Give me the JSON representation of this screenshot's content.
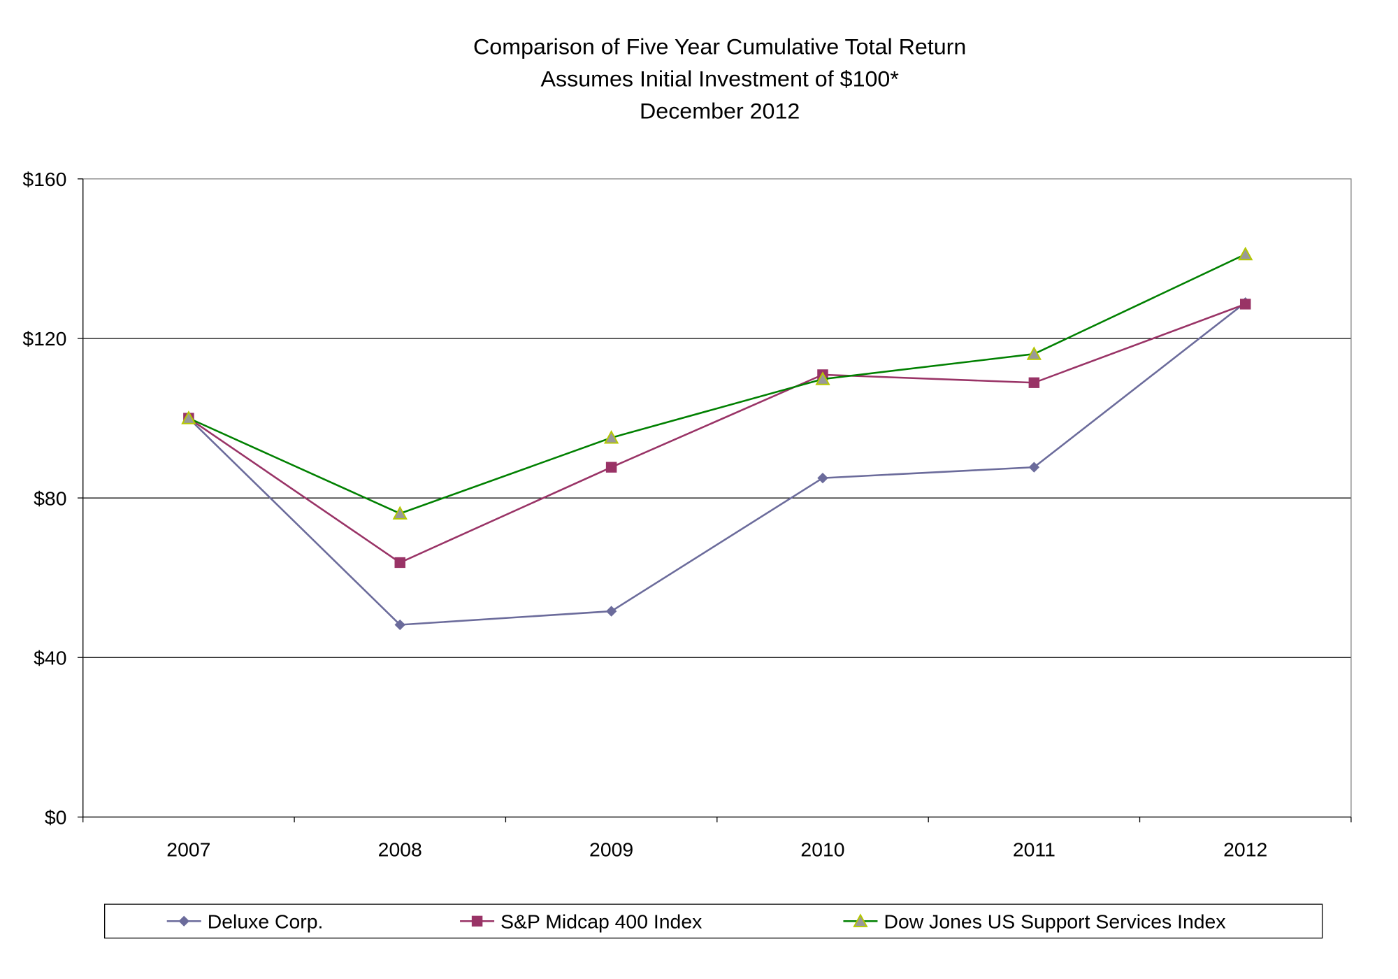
{
  "chart_data": {
    "type": "line",
    "title": [
      "Comparison of Five Year Cumulative Total Return",
      "Assumes Initial Investment of $100*",
      "December 2012"
    ],
    "xlabel": "",
    "ylabel": "",
    "categories": [
      "2007",
      "2008",
      "2009",
      "2010",
      "2011",
      "2012"
    ],
    "ylim": [
      0,
      160
    ],
    "yticks": [
      0,
      40,
      80,
      120,
      160
    ],
    "ytick_labels": [
      "$0",
      "$40",
      "$80",
      "$120",
      "$160"
    ],
    "grid": true,
    "legend_position": "bottom",
    "series": [
      {
        "name": "Deluxe Corp.",
        "marker": "diamond",
        "color": "#6B6B9B",
        "values": [
          100,
          48.2,
          51.6,
          85.0,
          87.7,
          129.0
        ]
      },
      {
        "name": "S&P Midcap 400 Index",
        "marker": "square",
        "color": "#993366",
        "values": [
          100,
          63.8,
          87.7,
          110.9,
          108.9,
          128.6
        ]
      },
      {
        "name": "Dow Jones US Support Services Index",
        "marker": "triangle",
        "color": "#008000",
        "marker_fill": "#999999",
        "marker_stroke": "#B5C800",
        "values": [
          100,
          76.1,
          95.1,
          109.8,
          116.1,
          141.1
        ]
      }
    ]
  }
}
